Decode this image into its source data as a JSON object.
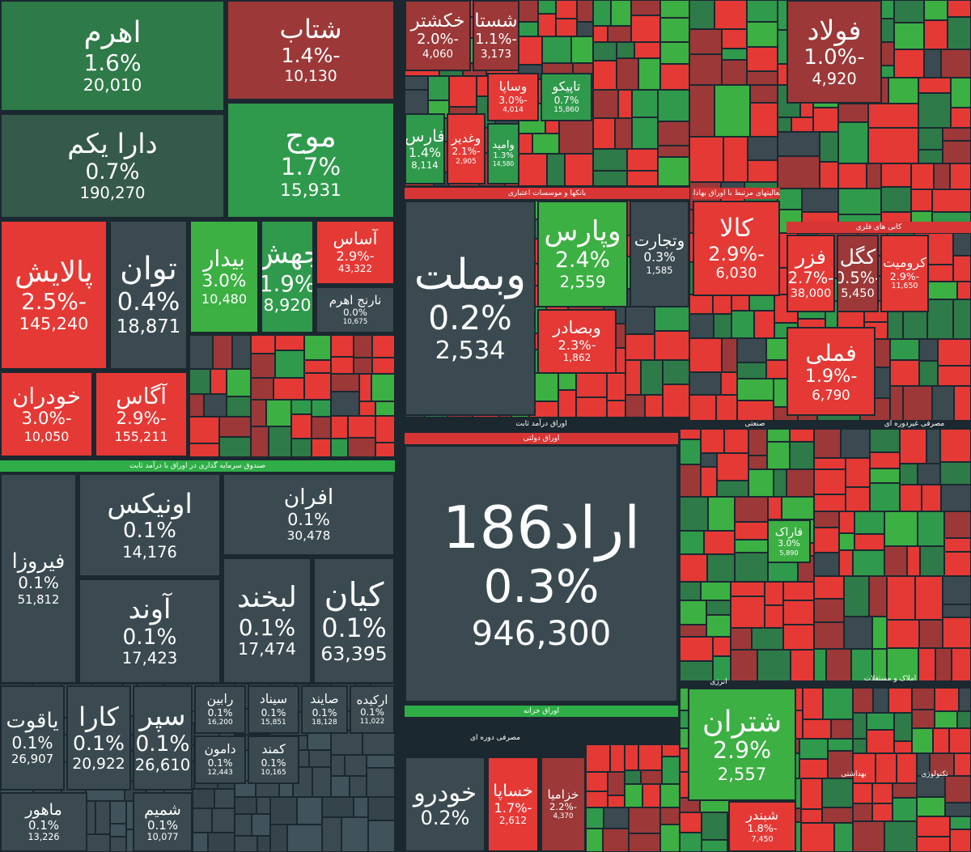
{
  "headers": [
    {
      "text": "صندوق سرمایه گذاری در اوراق با درآمد ثابت"
    },
    {
      "text": "بانکها و موسسات اعتباری"
    },
    {
      "text": "فعالیتهای مرتبط با اوراق بهادار"
    },
    {
      "text": "اوراق درآمد ثابت"
    },
    {
      "text": "اوراق دولتی"
    },
    {
      "text": "اوراق خزانه"
    },
    {
      "text": "مصرفی دوره ای"
    },
    {
      "text": "صنعتی"
    },
    {
      "text": "مصرفی غیردوره ای"
    },
    {
      "text": "انرژی"
    },
    {
      "text": "املاک و مستغلات"
    },
    {
      "text": "بهداشتی"
    },
    {
      "text": "تکنولوژی"
    },
    {
      "text": "کانی های فلزی"
    }
  ],
  "tiles": [
    {
      "name": "اهرم",
      "change": "1.6%",
      "price": "20,010"
    },
    {
      "name": "شتاب",
      "change": "-1.4%",
      "price": "10,130"
    },
    {
      "name": "دارا یکم",
      "change": "0.7%",
      "price": "190,270"
    },
    {
      "name": "موج",
      "change": "1.7%",
      "price": "15,931"
    },
    {
      "name": "پالایش",
      "change": "-2.5%",
      "price": "145,240"
    },
    {
      "name": "توان",
      "change": "0.4%",
      "price": "18,871"
    },
    {
      "name": "بیدار",
      "change": "3.0%",
      "price": "10,480"
    },
    {
      "name": "جهش",
      "change": "1.9%",
      "price": "8,920"
    },
    {
      "name": "آساس",
      "change": "-2.9%",
      "price": "43,322"
    },
    {
      "name": "نارنج اهرم",
      "change": "0.0%",
      "price": "10,675"
    },
    {
      "name": "خودران",
      "change": "-3.0%",
      "price": "10,050"
    },
    {
      "name": "آگاس",
      "change": "-2.9%",
      "price": "155,211"
    },
    {
      "name": "فیروزا",
      "change": "0.1%",
      "price": "51,812"
    },
    {
      "name": "اونیکس",
      "change": "0.1%",
      "price": "14,176"
    },
    {
      "name": "افران",
      "change": "0.1%",
      "price": "30,478"
    },
    {
      "name": "آوند",
      "change": "0.1%",
      "price": "17,423"
    },
    {
      "name": "لبخند",
      "change": "0.1%",
      "price": "17,474"
    },
    {
      "name": "کیان",
      "change": "0.1%",
      "price": "63,395"
    },
    {
      "name": "یاقوت",
      "change": "0.1%",
      "price": "26,907"
    },
    {
      "name": "کارا",
      "change": "0.1%",
      "price": "20,922"
    },
    {
      "name": "سپر",
      "change": "0.1%",
      "price": "26,610"
    },
    {
      "name": "رابین",
      "change": "0.1%",
      "price": "16,200"
    },
    {
      "name": "سیناد",
      "change": "0.1%",
      "price": "15,851"
    },
    {
      "name": "صایند",
      "change": "0.1%",
      "price": "18,128"
    },
    {
      "name": "ارکیده",
      "change": "0.1%",
      "price": "11,022"
    },
    {
      "name": "دامون",
      "change": "0.1%",
      "price": "12,443"
    },
    {
      "name": "کمند",
      "change": "0.1%",
      "price": "10,165"
    },
    {
      "name": "ماهور",
      "change": "0.1%",
      "price": "13,226"
    },
    {
      "name": "شمیم",
      "change": "0.1%",
      "price": "10,077"
    },
    {
      "name": "خکشتر",
      "change": "-2.0%",
      "price": "4,060"
    },
    {
      "name": "شستا",
      "change": "-1.1%",
      "price": "3,173"
    },
    {
      "name": "وساپا",
      "change": "-3.0%",
      "price": "4,014"
    },
    {
      "name": "تاپیکو",
      "change": "0.7%",
      "price": "15,860"
    },
    {
      "name": "فارس",
      "change": "1.4%",
      "price": "8,114"
    },
    {
      "name": "وغدیر",
      "change": "-2.1%",
      "price": "2,905"
    },
    {
      "name": "وامید",
      "change": "1.3%",
      "price": "14,580"
    },
    {
      "name": "وبملت",
      "change": "0.2%",
      "price": "2,534"
    },
    {
      "name": "وپارس",
      "change": "2.4%",
      "price": "2,559"
    },
    {
      "name": "وتجارت",
      "change": "0.3%",
      "price": "1,585"
    },
    {
      "name": "وبصادر",
      "change": "-2.3%",
      "price": "1,862"
    },
    {
      "name": "اراد186",
      "change": "0.3%",
      "price": "946,300"
    },
    {
      "name": "خودرو",
      "change": "0.2%"
    },
    {
      "name": "خساپا",
      "change": "-1.7%",
      "price": "2,612"
    },
    {
      "name": "خزامیا",
      "change": "-2.2%",
      "price": "4,370"
    },
    {
      "name": "کالا",
      "change": "-2.9%",
      "price": "6,030"
    },
    {
      "name": "فولاد",
      "change": "-1.0%",
      "price": "4,920"
    },
    {
      "name": "فزر",
      "change": "-2.7%",
      "price": "38,000"
    },
    {
      "name": "کگل",
      "change": "-0.5%",
      "price": "5,450"
    },
    {
      "name": "کرومیت",
      "change": "-2.9%",
      "price": "11,650"
    },
    {
      "name": "فملی",
      "change": "-1.9%",
      "price": "6,790"
    },
    {
      "name": "فاراک",
      "change": "3.0%",
      "price": "5,890"
    },
    {
      "name": "شتران",
      "change": "2.9%",
      "price": "2,557"
    },
    {
      "name": "شبندر",
      "change": "-1.8%",
      "price": "7,450"
    }
  ]
}
